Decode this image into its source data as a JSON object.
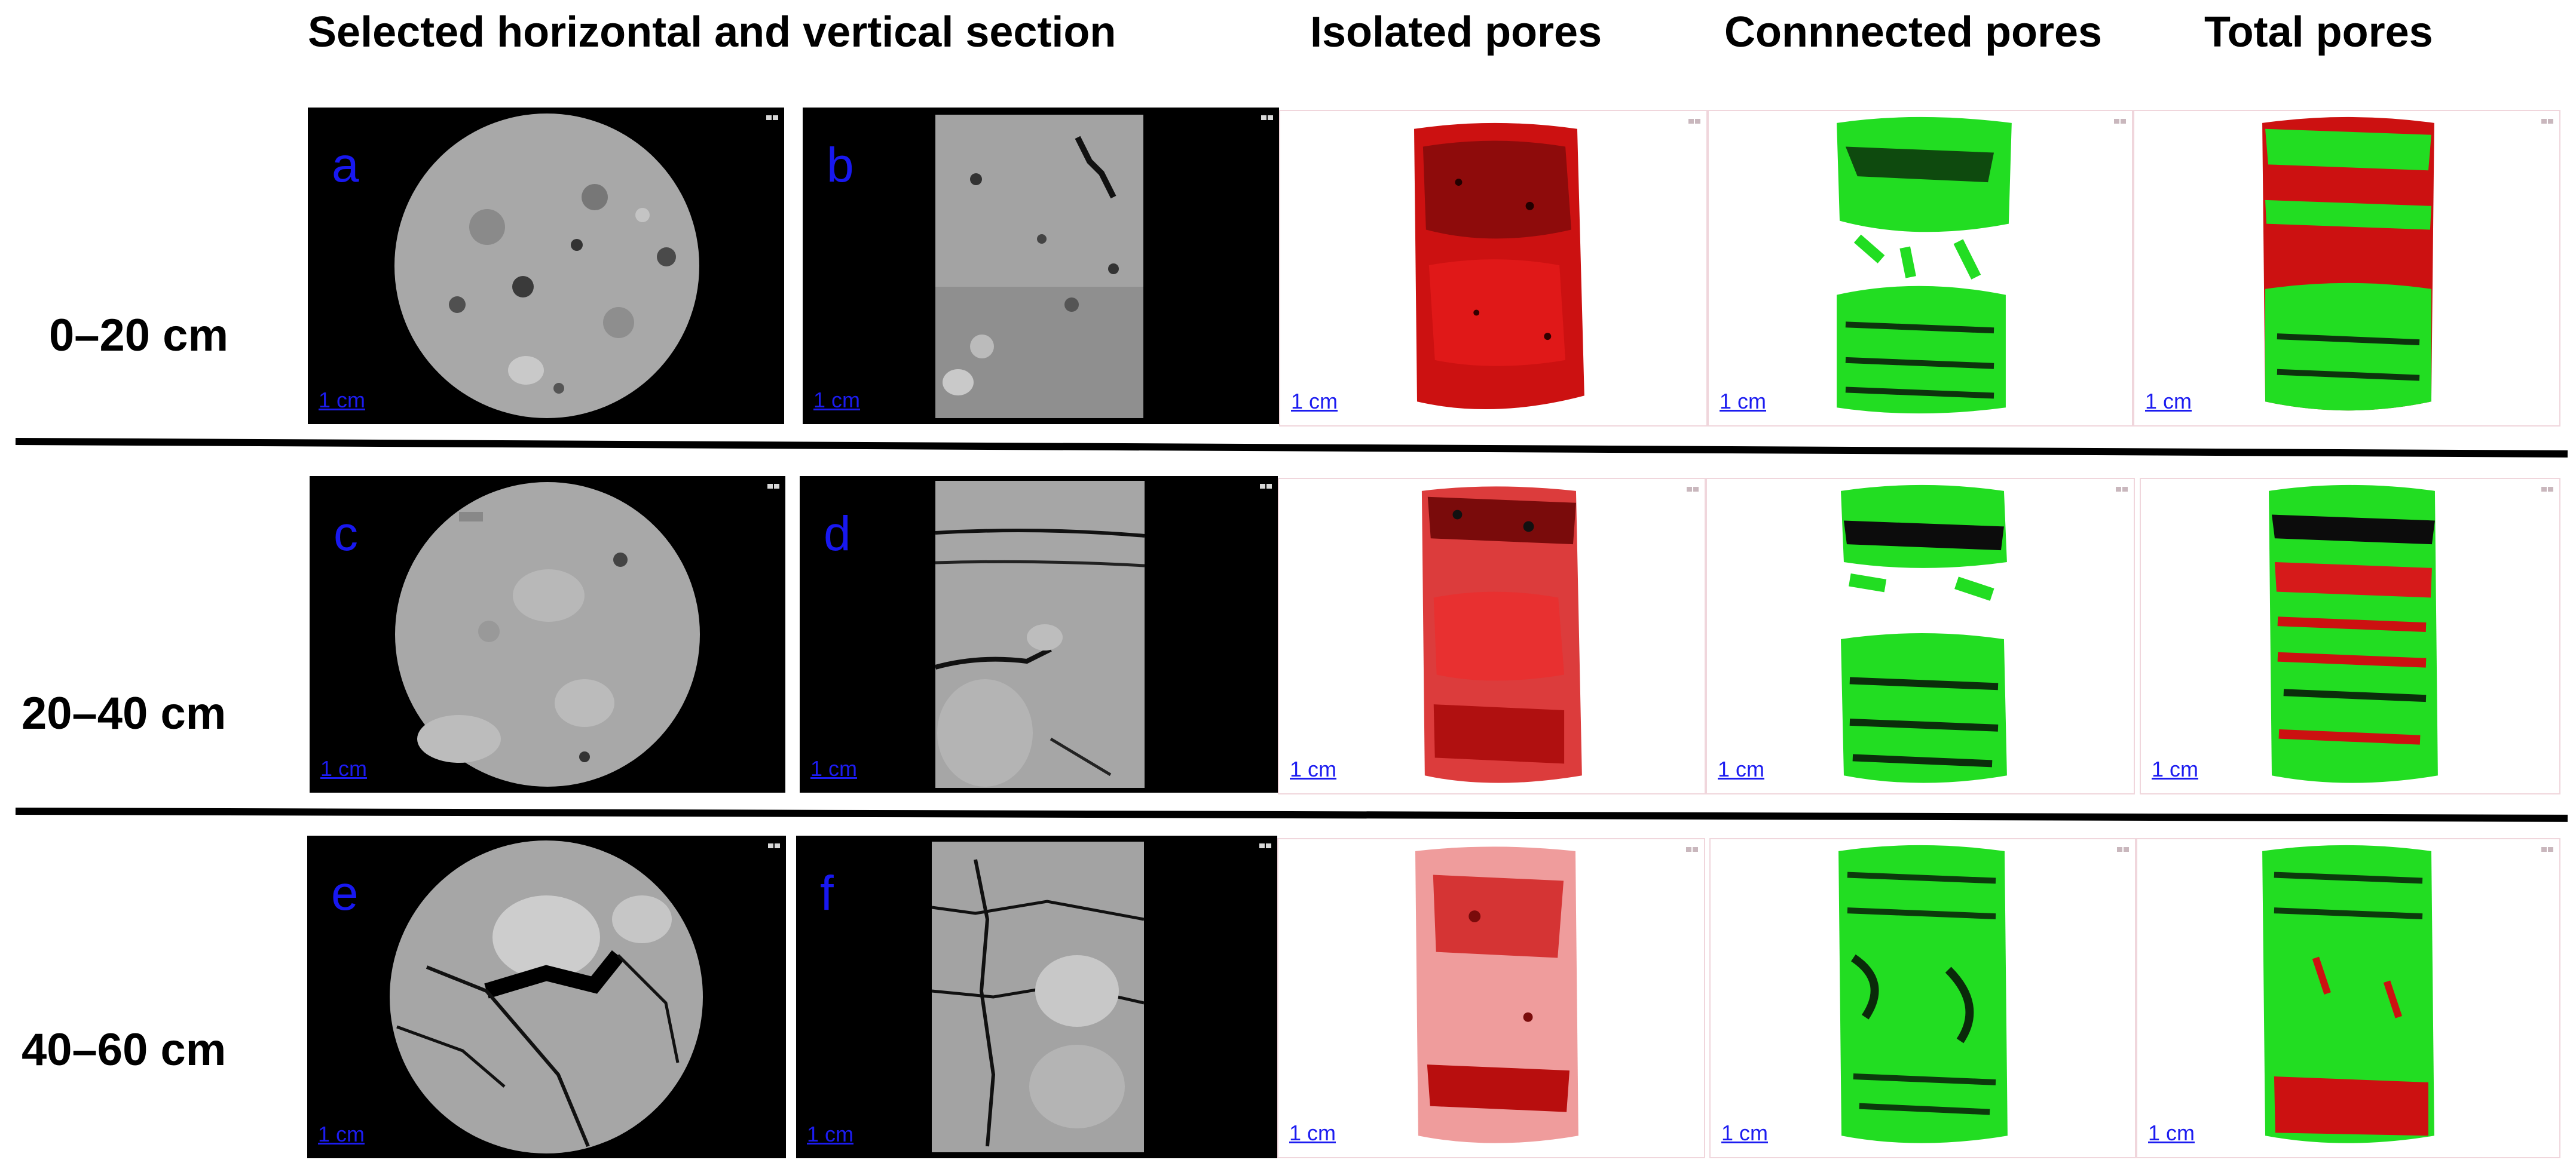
{
  "headers": {
    "sections": "Selected horizontal and vertical section",
    "isolated": "Isolated pores",
    "connected": "Connnected pores",
    "total": "Total pores"
  },
  "rows": [
    {
      "depth": "0–20 cm",
      "letter_h": "a",
      "letter_v": "b"
    },
    {
      "depth": "20–40 cm",
      "letter_h": "c",
      "letter_v": "d"
    },
    {
      "depth": "40–60 cm",
      "letter_h": "e",
      "letter_v": "f"
    }
  ],
  "scale_label": "1 cm",
  "colors": {
    "isolated_pores": "#cc1111",
    "connected_pores": "#22dd22",
    "panel_label": "#1818f0",
    "ct_background": "#000000",
    "ct_matrix": "#a6a6a6"
  }
}
